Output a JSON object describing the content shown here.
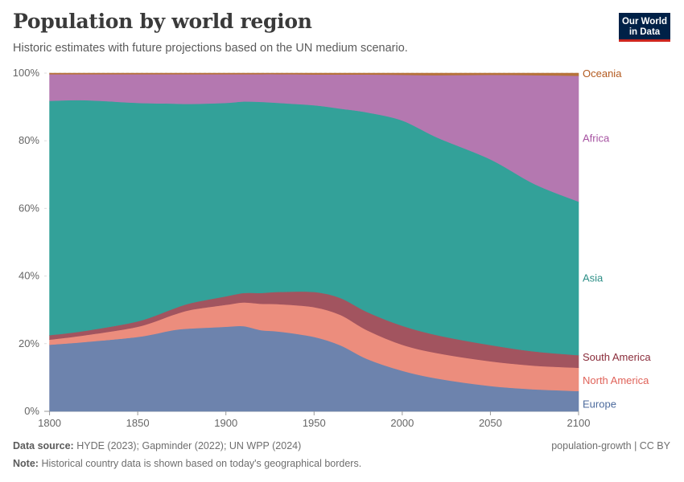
{
  "header": {
    "title": "Population by world region",
    "subtitle": "Historic estimates with future projections based on the UN medium scenario."
  },
  "logo": {
    "line1": "Our World",
    "line2": "in Data",
    "bg": "#002147",
    "accent": "#ce261e"
  },
  "footer": {
    "source_label": "Data source:",
    "source_text": "HYDE (2023); Gapminder (2022); UN WPP (2024)",
    "note_label": "Note:",
    "note_text": "Historical country data is shown based on today's geographical borders.",
    "right_text": "population-growth | CC BY"
  },
  "chart_data": {
    "type": "area",
    "stacked": true,
    "relative": true,
    "x": [
      1800,
      1820,
      1850,
      1870,
      1880,
      1900,
      1910,
      1920,
      1930,
      1950,
      1965,
      1980,
      2000,
      2020,
      2050,
      2075,
      2100
    ],
    "xlim": [
      1797,
      2100
    ],
    "ylim": [
      0,
      100
    ],
    "x_ticks": [
      1800,
      1850,
      1900,
      1950,
      2000,
      2050,
      2100
    ],
    "y_ticks": [
      0,
      20,
      40,
      60,
      80,
      100
    ],
    "y_tick_labels": [
      "0%",
      "20%",
      "40%",
      "60%",
      "80%",
      "100%"
    ],
    "grid": "horizontal",
    "legend": "right",
    "series": [
      {
        "name": "Europe",
        "color": "#6d83ad",
        "values": [
          19.7,
          20.5,
          22.0,
          24.0,
          24.5,
          25.0,
          25.2,
          24.0,
          23.6,
          22.0,
          19.5,
          15.5,
          12.0,
          9.7,
          7.5,
          6.5,
          6.0
        ]
      },
      {
        "name": "North America",
        "color": "#ec8d7d",
        "values": [
          1.5,
          2.0,
          3.0,
          4.5,
          5.5,
          6.5,
          7.0,
          7.8,
          8.1,
          8.8,
          9.0,
          8.5,
          7.7,
          7.5,
          7.3,
          7.0,
          6.9
        ]
      },
      {
        "name": "South America",
        "color": "#a2545f",
        "values": [
          1.3,
          1.3,
          1.6,
          1.8,
          2.0,
          2.5,
          2.8,
          3.2,
          3.6,
          4.5,
          5.0,
          5.4,
          5.6,
          5.3,
          4.8,
          4.2,
          3.7
        ]
      },
      {
        "name": "Asia",
        "color": "#33a199",
        "values": [
          69.3,
          68.2,
          64.6,
          60.7,
          58.9,
          57.2,
          56.6,
          56.5,
          55.9,
          55.2,
          56.0,
          59.0,
          60.7,
          58.4,
          54.9,
          49.5,
          45.4
        ]
      },
      {
        "name": "Africa",
        "color": "#b478b0",
        "values": [
          7.9,
          7.7,
          8.5,
          8.7,
          8.8,
          8.5,
          8.1,
          8.2,
          8.5,
          9.1,
          10.1,
          11.2,
          13.5,
          18.5,
          25.0,
          32.2,
          37.2
        ]
      },
      {
        "name": "Oceania",
        "color": "#b6733a",
        "values": [
          0.3,
          0.3,
          0.3,
          0.3,
          0.3,
          0.3,
          0.3,
          0.3,
          0.3,
          0.4,
          0.4,
          0.4,
          0.5,
          0.6,
          0.5,
          0.6,
          0.8
        ]
      }
    ]
  }
}
